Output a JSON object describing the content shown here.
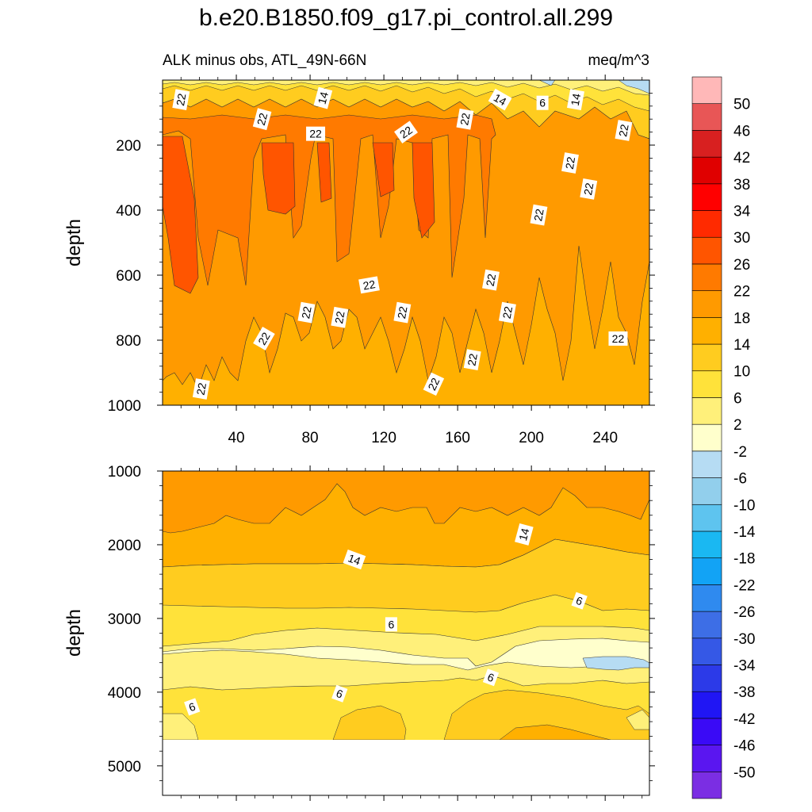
{
  "chart_data": {
    "type": "heatmap",
    "title": "b.e20.B1850.f09_g17.pi_control.all.299",
    "subtitle_left": "ALK minus obs, ATL_49N-66N",
    "subtitle_right": "meq/m^3",
    "units": "meq/m^3",
    "colorbar": {
      "levels": [
        -50,
        -46,
        -42,
        -38,
        -34,
        -30,
        -26,
        -22,
        -18,
        -14,
        -10,
        -6,
        -2,
        2,
        6,
        10,
        14,
        18,
        22,
        26,
        30,
        34,
        38,
        42,
        46,
        50
      ],
      "labels": [
        "50",
        "46",
        "42",
        "38",
        "34",
        "30",
        "26",
        "22",
        "18",
        "14",
        "10",
        "6",
        "2",
        "-2",
        "-6",
        "-10",
        "-14",
        "-18",
        "-22",
        "-26",
        "-30",
        "-34",
        "-38",
        "-42",
        "-46",
        "-50"
      ],
      "colors": [
        "#7b2ee3",
        "#5a16f0",
        "#3a0af6",
        "#2016f4",
        "#2c3ae8",
        "#3558e6",
        "#3d6ee6",
        "#2f8aef",
        "#12a3f5",
        "#1ab8f2",
        "#5ec4ef",
        "#92cfec",
        "#b6dcf3",
        "#ffffcc",
        "#fff07a",
        "#ffe23a",
        "#ffcc1f",
        "#ffb000",
        "#ff9a00",
        "#ff7a00",
        "#ff5500",
        "#ff2a00",
        "#ff0000",
        "#e00000",
        "#d82020",
        "#e85656",
        "#ffb8b8"
      ]
    },
    "panels": [
      {
        "name": "upper",
        "x_ticks": [
          40,
          80,
          120,
          160,
          200,
          240
        ],
        "x_tick_labels": [
          "40",
          "80",
          "120",
          "160",
          "200",
          "240"
        ],
        "xlim": [
          0,
          264
        ],
        "y_ticks": [
          200,
          400,
          600,
          800,
          1000
        ],
        "y_tick_labels": [
          "200",
          "400",
          "600",
          "800",
          "1000"
        ],
        "ylim": [
          0,
          1000
        ],
        "ylabel": "depth",
        "contour_labels": [
          {
            "text": "22",
            "x": 10,
            "y": 60,
            "rot": -80
          },
          {
            "text": "14",
            "x": 87,
            "y": 55,
            "rot": -75
          },
          {
            "text": "22",
            "x": 54,
            "y": 120,
            "rot": -75
          },
          {
            "text": "22",
            "x": 83,
            "y": 165,
            "rot": 0
          },
          {
            "text": "22",
            "x": 132,
            "y": 160,
            "rot": -35
          },
          {
            "text": "22",
            "x": 164,
            "y": 120,
            "rot": -80
          },
          {
            "text": "14",
            "x": 183,
            "y": 60,
            "rot": 30
          },
          {
            "text": "6",
            "x": 206,
            "y": 70,
            "rot": 0
          },
          {
            "text": "14",
            "x": 224,
            "y": 60,
            "rot": -80
          },
          {
            "text": "22",
            "x": 250,
            "y": 155,
            "rot": -80
          },
          {
            "text": "22",
            "x": 221,
            "y": 255,
            "rot": -80
          },
          {
            "text": "22",
            "x": 231,
            "y": 335,
            "rot": -80
          },
          {
            "text": "22",
            "x": 204,
            "y": 415,
            "rot": -80
          },
          {
            "text": "22",
            "x": 178,
            "y": 615,
            "rot": -80
          },
          {
            "text": "22",
            "x": 112,
            "y": 630,
            "rot": -10
          },
          {
            "text": "22",
            "x": 78,
            "y": 715,
            "rot": -80
          },
          {
            "text": "22",
            "x": 96,
            "y": 730,
            "rot": -80
          },
          {
            "text": "22",
            "x": 130,
            "y": 715,
            "rot": -80
          },
          {
            "text": "22",
            "x": 187,
            "y": 715,
            "rot": -80
          },
          {
            "text": "22",
            "x": 55,
            "y": 795,
            "rot": -60
          },
          {
            "text": "22",
            "x": 247,
            "y": 795,
            "rot": 0
          },
          {
            "text": "22",
            "x": 168,
            "y": 860,
            "rot": -80
          },
          {
            "text": "22",
            "x": 147,
            "y": 935,
            "rot": -65
          },
          {
            "text": "22",
            "x": 21,
            "y": 950,
            "rot": -80
          }
        ]
      },
      {
        "name": "lower",
        "x_ticks": [
          40,
          80,
          120,
          160,
          200,
          240
        ],
        "xlim": [
          0,
          264
        ],
        "y_ticks": [
          1000,
          2000,
          3000,
          4000,
          5000
        ],
        "y_tick_labels": [
          "1000",
          "2000",
          "3000",
          "4000",
          "5000"
        ],
        "ylim": [
          1000,
          5400
        ],
        "data_bottom": 4640,
        "ylabel": "depth",
        "contour_labels": [
          {
            "text": "14",
            "x": 196,
            "y": 1860,
            "rot": -75
          },
          {
            "text": "14",
            "x": 104,
            "y": 2200,
            "rot": 20
          },
          {
            "text": "6",
            "x": 226,
            "y": 2760,
            "rot": 20
          },
          {
            "text": "6",
            "x": 124,
            "y": 3080,
            "rot": 0
          },
          {
            "text": "6",
            "x": 178,
            "y": 3800,
            "rot": 20
          },
          {
            "text": "6",
            "x": 96,
            "y": 4020,
            "rot": 20
          },
          {
            "text": "6",
            "x": 16,
            "y": 4200,
            "rot": -20
          }
        ]
      }
    ]
  }
}
